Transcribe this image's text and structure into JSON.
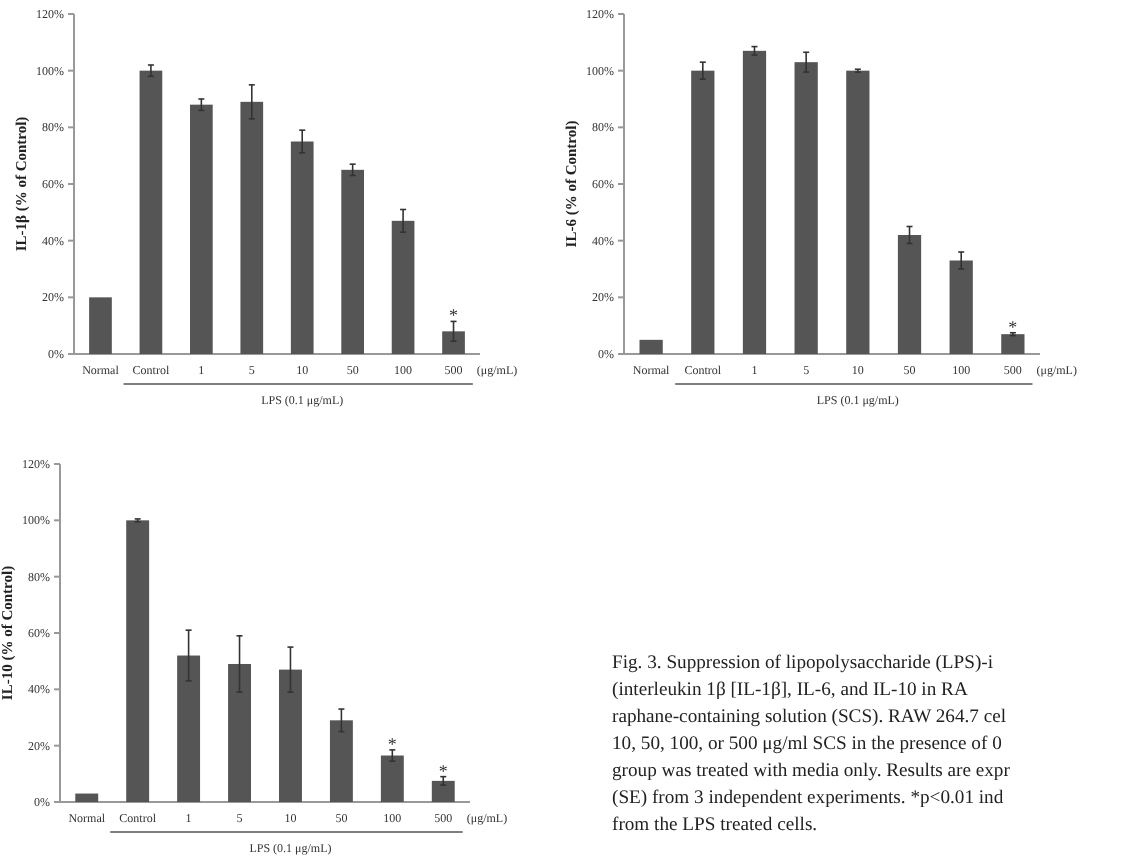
{
  "chart_data": [
    {
      "type": "bar",
      "ylabel": "IL-1β (% of Control)",
      "xlabel": "LPS (0.1 μg/mL)",
      "categories": [
        "Normal",
        "Control",
        "1",
        "5",
        "10",
        "50",
        "100",
        "500"
      ],
      "values": [
        20,
        100,
        88,
        89,
        75,
        65,
        47,
        8
      ],
      "errors": [
        null,
        2,
        2,
        6,
        4,
        2,
        4,
        3.5
      ],
      "color": "#555555",
      "ylim": [
        0,
        120
      ],
      "yticks": [
        {
          "value": 0,
          "label": "0%"
        },
        {
          "value": 20,
          "label": "20%"
        },
        {
          "value": 40,
          "label": "40%"
        },
        {
          "value": 60,
          "label": "60%"
        },
        {
          "value": 80,
          "label": "80%"
        },
        {
          "value": 100,
          "label": "100%"
        },
        {
          "value": 120,
          "label": "120%"
        }
      ],
      "annotations": [
        "(μg/mL)",
        {
          "text": "*",
          "x": "500",
          "y": 11.5
        }
      ]
    },
    {
      "type": "bar",
      "ylabel": "IL-6 (% of Control)",
      "xlabel": "LPS (0.1 μg/mL)",
      "categories": [
        "Normal",
        "Control",
        "1",
        "5",
        "10",
        "50",
        "100",
        "500"
      ],
      "values": [
        5,
        100,
        107,
        103,
        100,
        42,
        33,
        7
      ],
      "errors": [
        null,
        3,
        1.5,
        3.5,
        0.5,
        3,
        3,
        0.5
      ],
      "color": "#555555",
      "ylim": [
        0,
        120
      ],
      "yticks": [
        {
          "value": 0,
          "label": "0%"
        },
        {
          "value": 20,
          "label": "20%"
        },
        {
          "value": 40,
          "label": "40%"
        },
        {
          "value": 60,
          "label": "60%"
        },
        {
          "value": 80,
          "label": "80%"
        },
        {
          "value": 100,
          "label": "100%"
        },
        {
          "value": 120,
          "label": "120%"
        }
      ],
      "annotations": [
        "(μg/mL)",
        {
          "text": "*",
          "x": "500",
          "y": 7.5
        }
      ]
    },
    {
      "type": "bar",
      "ylabel": "IL-10 (% of Control)",
      "xlabel": "LPS (0.1 μg/mL)",
      "categories": [
        "Normal",
        "Control",
        "1",
        "5",
        "10",
        "50",
        "100",
        "500"
      ],
      "values": [
        3,
        100,
        52,
        49,
        47,
        29,
        16.5,
        7.5
      ],
      "errors": [
        null,
        0.5,
        9,
        10,
        8,
        4,
        2,
        1.5
      ],
      "color": "#555555",
      "ylim": [
        0,
        120
      ],
      "yticks": [
        {
          "value": 0,
          "label": "0%"
        },
        {
          "value": 20,
          "label": "20%"
        },
        {
          "value": 40,
          "label": "40%"
        },
        {
          "value": 60,
          "label": "60%"
        },
        {
          "value": 80,
          "label": "80%"
        },
        {
          "value": 100,
          "label": "100%"
        },
        {
          "value": 120,
          "label": "120%"
        }
      ],
      "annotations": [
        "(μg/mL)",
        {
          "text": "*",
          "x": "100",
          "y": 18.5
        },
        {
          "text": "*",
          "x": "500",
          "y": 9
        }
      ]
    },
    {
      "type": "other",
      "annotations": [
        "Fig. 3. Suppression of lipopolysaccharide (LPS)-i",
        "(interleukin 1β [IL-1β], IL-6, and IL-10 in RA",
        "raphane-containing solution (SCS). RAW 264.7 cel",
        "10, 50, 100, or 500 μg/ml SCS in the presence of 0",
        "group was treated with media only. Results are expr",
        "(SE) from 3 independent experiments. *p<0.01 ind",
        "from the LPS treated cells."
      ]
    }
  ]
}
